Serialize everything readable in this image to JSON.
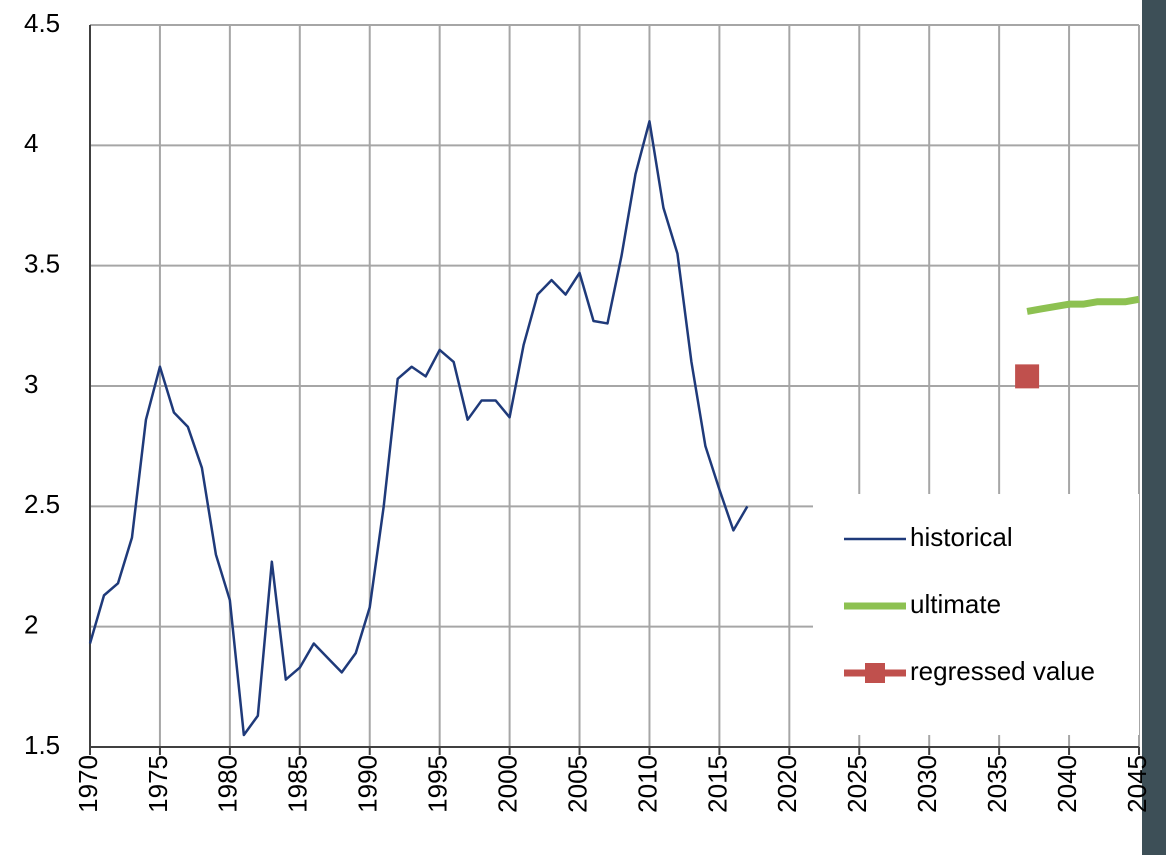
{
  "chart_data": {
    "type": "line",
    "xlim": [
      1970,
      2045
    ],
    "xticks": [
      1970,
      1975,
      1980,
      1985,
      1990,
      1995,
      2000,
      2005,
      2010,
      2015,
      2020,
      2025,
      2030,
      2035,
      2040,
      2045
    ],
    "ylim": [
      1.5,
      4.5
    ],
    "yticks": [
      1.5,
      2,
      2.5,
      3,
      3.5,
      4,
      4.5
    ],
    "grid": true,
    "legend": "lower right",
    "series": [
      {
        "name": "historical",
        "color": "#1f3a7a",
        "style": "line",
        "x": [
          1970,
          1971,
          1972,
          1973,
          1974,
          1975,
          1976,
          1977,
          1978,
          1979,
          1980,
          1981,
          1982,
          1983,
          1984,
          1985,
          1986,
          1987,
          1988,
          1989,
          1990,
          1991,
          1992,
          1993,
          1994,
          1995,
          1996,
          1997,
          1998,
          1999,
          2000,
          2001,
          2002,
          2003,
          2004,
          2005,
          2006,
          2007,
          2008,
          2009,
          2010,
          2011,
          2012,
          2013,
          2014,
          2015,
          2016,
          2017
        ],
        "values": [
          1.93,
          2.13,
          2.18,
          2.37,
          2.86,
          3.08,
          2.89,
          2.83,
          2.66,
          2.3,
          2.11,
          1.55,
          1.63,
          2.27,
          1.78,
          1.83,
          1.93,
          1.87,
          1.81,
          1.89,
          2.08,
          2.5,
          3.03,
          3.08,
          3.04,
          3.15,
          3.1,
          2.86,
          2.94,
          2.94,
          2.87,
          3.17,
          3.38,
          3.44,
          3.38,
          3.47,
          3.27,
          3.26,
          3.54,
          3.88,
          4.1,
          3.74,
          3.55,
          3.1,
          2.75,
          2.57,
          2.4,
          2.5
        ]
      },
      {
        "name": "ultimate",
        "color": "#8dc151",
        "style": "thick-line",
        "x": [
          2037,
          2038,
          2039,
          2040,
          2041,
          2042,
          2043,
          2044,
          2045
        ],
        "values": [
          3.31,
          3.32,
          3.33,
          3.34,
          3.34,
          3.35,
          3.35,
          3.35,
          3.36
        ]
      },
      {
        "name": "regressed value",
        "color": "#c0504d",
        "style": "marker",
        "x": [
          2037
        ],
        "values": [
          3.04
        ]
      }
    ]
  }
}
